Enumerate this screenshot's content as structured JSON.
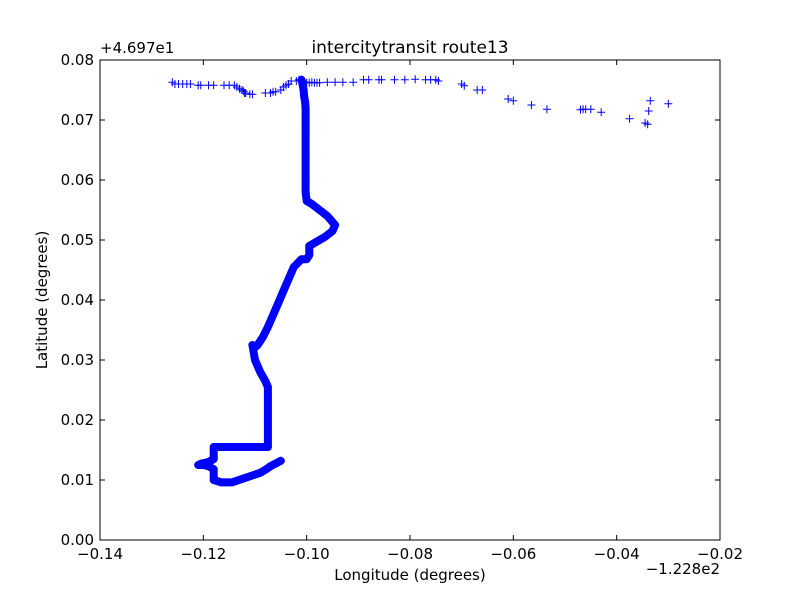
{
  "chart_data": {
    "type": "scatter",
    "title": "intercitytransit route13",
    "xlabel": "Longitude (degrees)",
    "ylabel": "Latitude (degrees)",
    "x_offset_label": "−1.228e2",
    "y_offset_label": "+4.697e1",
    "xlim": [
      -0.14,
      -0.02
    ],
    "ylim": [
      0.0,
      0.08
    ],
    "xticks": [
      -0.14,
      -0.12,
      -0.1,
      -0.08,
      -0.06,
      -0.04,
      -0.02
    ],
    "yticks": [
      0.0,
      0.01,
      0.02,
      0.03,
      0.04,
      0.05,
      0.06,
      0.07,
      0.08
    ],
    "xtick_labels": [
      "−0.14",
      "−0.12",
      "−0.10",
      "−0.08",
      "−0.06",
      "−0.04",
      "−0.02"
    ],
    "ytick_labels": [
      "0.00",
      "0.01",
      "0.02",
      "0.03",
      "0.04",
      "0.05",
      "0.06",
      "0.07",
      "0.08"
    ],
    "marker": "+",
    "color": "#0000ff",
    "grid": false,
    "legend": "none",
    "series": [
      {
        "x": [
          -0.126,
          -0.1255,
          -0.1248,
          -0.124,
          -0.1232,
          -0.1225,
          -0.121,
          -0.1205,
          -0.119,
          -0.118,
          -0.116,
          -0.115,
          -0.114,
          -0.1135,
          -0.113,
          -0.1125,
          -0.1122,
          -0.112,
          -0.1118,
          -0.111,
          -0.1105,
          -0.108,
          -0.107,
          -0.1065,
          -0.106,
          -0.105,
          -0.1045,
          -0.104,
          -0.1035,
          -0.103,
          -0.102,
          -0.1015,
          -0.101,
          -0.1008,
          -0.1005,
          -0.1,
          -0.0995,
          -0.099,
          -0.0985,
          -0.098,
          -0.0975,
          -0.096,
          -0.0945,
          -0.093,
          -0.091,
          -0.089,
          -0.088,
          -0.086,
          -0.0855,
          -0.083,
          -0.081,
          -0.079,
          -0.077,
          -0.076,
          -0.075,
          -0.0745,
          -0.07,
          -0.0695,
          -0.067,
          -0.066,
          -0.061,
          -0.06,
          -0.0565,
          -0.0535,
          -0.047,
          -0.0465,
          -0.046,
          -0.045,
          -0.043,
          -0.0375,
          -0.0345,
          -0.034,
          -0.0338,
          -0.0335,
          -0.03
        ],
        "y": [
          0.0763,
          0.076,
          0.076,
          0.076,
          0.076,
          0.076,
          0.0758,
          0.0758,
          0.0758,
          0.0758,
          0.0758,
          0.0758,
          0.0758,
          0.0755,
          0.0752,
          0.075,
          0.0748,
          0.0745,
          0.0745,
          0.0743,
          0.0743,
          0.0745,
          0.0745,
          0.0747,
          0.0747,
          0.075,
          0.0755,
          0.0758,
          0.076,
          0.0765,
          0.0765,
          0.0767,
          0.0767,
          0.0765,
          0.0763,
          0.0762,
          0.0762,
          0.0763,
          0.0762,
          0.0762,
          0.0762,
          0.0763,
          0.0763,
          0.0763,
          0.0763,
          0.0767,
          0.0767,
          0.0767,
          0.0767,
          0.0767,
          0.0767,
          0.0768,
          0.0767,
          0.0767,
          0.0767,
          0.0765,
          0.076,
          0.0757,
          0.075,
          0.075,
          0.0735,
          0.0732,
          0.0725,
          0.0718,
          0.0717,
          0.0718,
          0.0718,
          0.0718,
          0.0713,
          0.0702,
          0.0695,
          0.0693,
          0.0715,
          0.0732,
          0.0727
        ]
      },
      {
        "x": [
          -0.101,
          -0.1008,
          -0.1006,
          -0.1005,
          -0.1003,
          -0.1002,
          -0.1002,
          -0.1002,
          -0.1002,
          -0.1002,
          -0.1002,
          -0.1002,
          -0.1002,
          -0.1002,
          -0.1002,
          -0.1,
          -0.099,
          -0.0975,
          -0.096,
          -0.095,
          -0.0945,
          -0.095,
          -0.0965,
          -0.0985,
          -0.0995,
          -0.0995,
          -0.1,
          -0.101,
          -0.1025,
          -0.1035,
          -0.1045,
          -0.1055,
          -0.1065,
          -0.1075,
          -0.1085,
          -0.1095,
          -0.1102,
          -0.1105,
          -0.11,
          -0.109,
          -0.108,
          -0.1075,
          -0.1075,
          -0.1075,
          -0.1075,
          -0.1075,
          -0.1075,
          -0.1075,
          -0.1075,
          -0.109,
          -0.1105,
          -0.112,
          -0.1135,
          -0.115,
          -0.1165,
          -0.118,
          -0.118,
          -0.118,
          -0.118,
          -0.119,
          -0.12,
          -0.1205,
          -0.121,
          -0.12,
          -0.119,
          -0.118,
          -0.118,
          -0.118,
          -0.1165,
          -0.1155,
          -0.1145,
          -0.109,
          -0.108,
          -0.107,
          -0.105
        ],
        "y": [
          0.0767,
          0.076,
          0.075,
          0.074,
          0.073,
          0.072,
          0.071,
          0.07,
          0.069,
          0.068,
          0.066,
          0.064,
          0.062,
          0.06,
          0.058,
          0.0565,
          0.056,
          0.055,
          0.054,
          0.053,
          0.0525,
          0.0515,
          0.0505,
          0.0495,
          0.049,
          0.0475,
          0.0468,
          0.0468,
          0.0455,
          0.0435,
          0.0415,
          0.0395,
          0.0375,
          0.0355,
          0.0338,
          0.0325,
          0.032,
          0.0325,
          0.03,
          0.028,
          0.0265,
          0.0255,
          0.024,
          0.0225,
          0.021,
          0.0195,
          0.018,
          0.0165,
          0.0155,
          0.0155,
          0.0155,
          0.0155,
          0.0155,
          0.0155,
          0.0155,
          0.0155,
          0.0148,
          0.014,
          0.0135,
          0.013,
          0.0128,
          0.0127,
          0.0125,
          0.0125,
          0.0123,
          0.0118,
          0.0105,
          0.01,
          0.0096,
          0.0096,
          0.0096,
          0.0112,
          0.0117,
          0.0123,
          0.0132
        ]
      }
    ]
  }
}
